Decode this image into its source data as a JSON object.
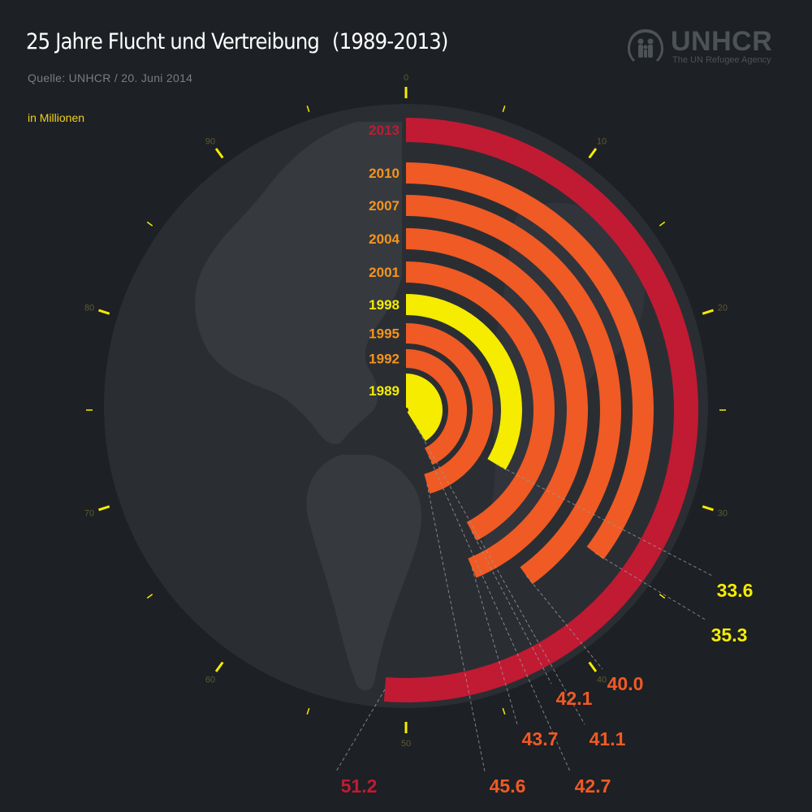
{
  "header": {
    "title": "25 Jahre Flucht und Vertreibung",
    "period": "(1989-2013)",
    "source": "Quelle: UNHCR / 20. Juni 2014",
    "unit": "in Millionen"
  },
  "logo": {
    "name": "UNHCR",
    "tagline": "The UN Refugee Agency",
    "icon": "unhcr-people-icon"
  },
  "colors": {
    "background": "#1d2024",
    "globe": "#2a2e33",
    "land": "#363a3f",
    "highlight": "#f5ec00",
    "orange": "#f05a24",
    "red": "#c11a33",
    "yearOrange": "#f7941d",
    "tickYellow": "#f5ec00"
  },
  "chart_data": {
    "type": "radial-bar",
    "title": "25 Jahre Flucht und Vertreibung (1989-2013)",
    "unit": "in Millionen",
    "scale_max": 100,
    "ticks": [
      0,
      10,
      20,
      30,
      40,
      50,
      60,
      70,
      80,
      90
    ],
    "categories": [
      "1989",
      "1992",
      "1995",
      "1998",
      "2001",
      "2004",
      "2007",
      "2010",
      "2013"
    ],
    "values": [
      41.1,
      42.7,
      45.6,
      33.6,
      42.1,
      43.7,
      40.0,
      35.3,
      51.2
    ],
    "value_labels": [
      "41.1",
      "42.7",
      "45.6",
      "33.6",
      "42.1",
      "43.7",
      "40.0",
      "35.3",
      "51.2"
    ],
    "bar_colors": [
      "#f5ec00",
      "#f05a24",
      "#f05a24",
      "#f5ec00",
      "#f05a24",
      "#f05a24",
      "#f05a24",
      "#f05a24",
      "#c11a33"
    ],
    "year_label_colors": [
      "#f5ec00",
      "#f7941d",
      "#f7941d",
      "#f5ec00",
      "#f7941d",
      "#f7941d",
      "#f7941d",
      "#f7941d",
      "#c11a33"
    ],
    "value_label_colors": [
      "#f05a24",
      "#f05a24",
      "#f05a24",
      "#f5ec00",
      "#f05a24",
      "#f05a24",
      "#f05a24",
      "#f5ec00",
      "#c11a33"
    ]
  }
}
